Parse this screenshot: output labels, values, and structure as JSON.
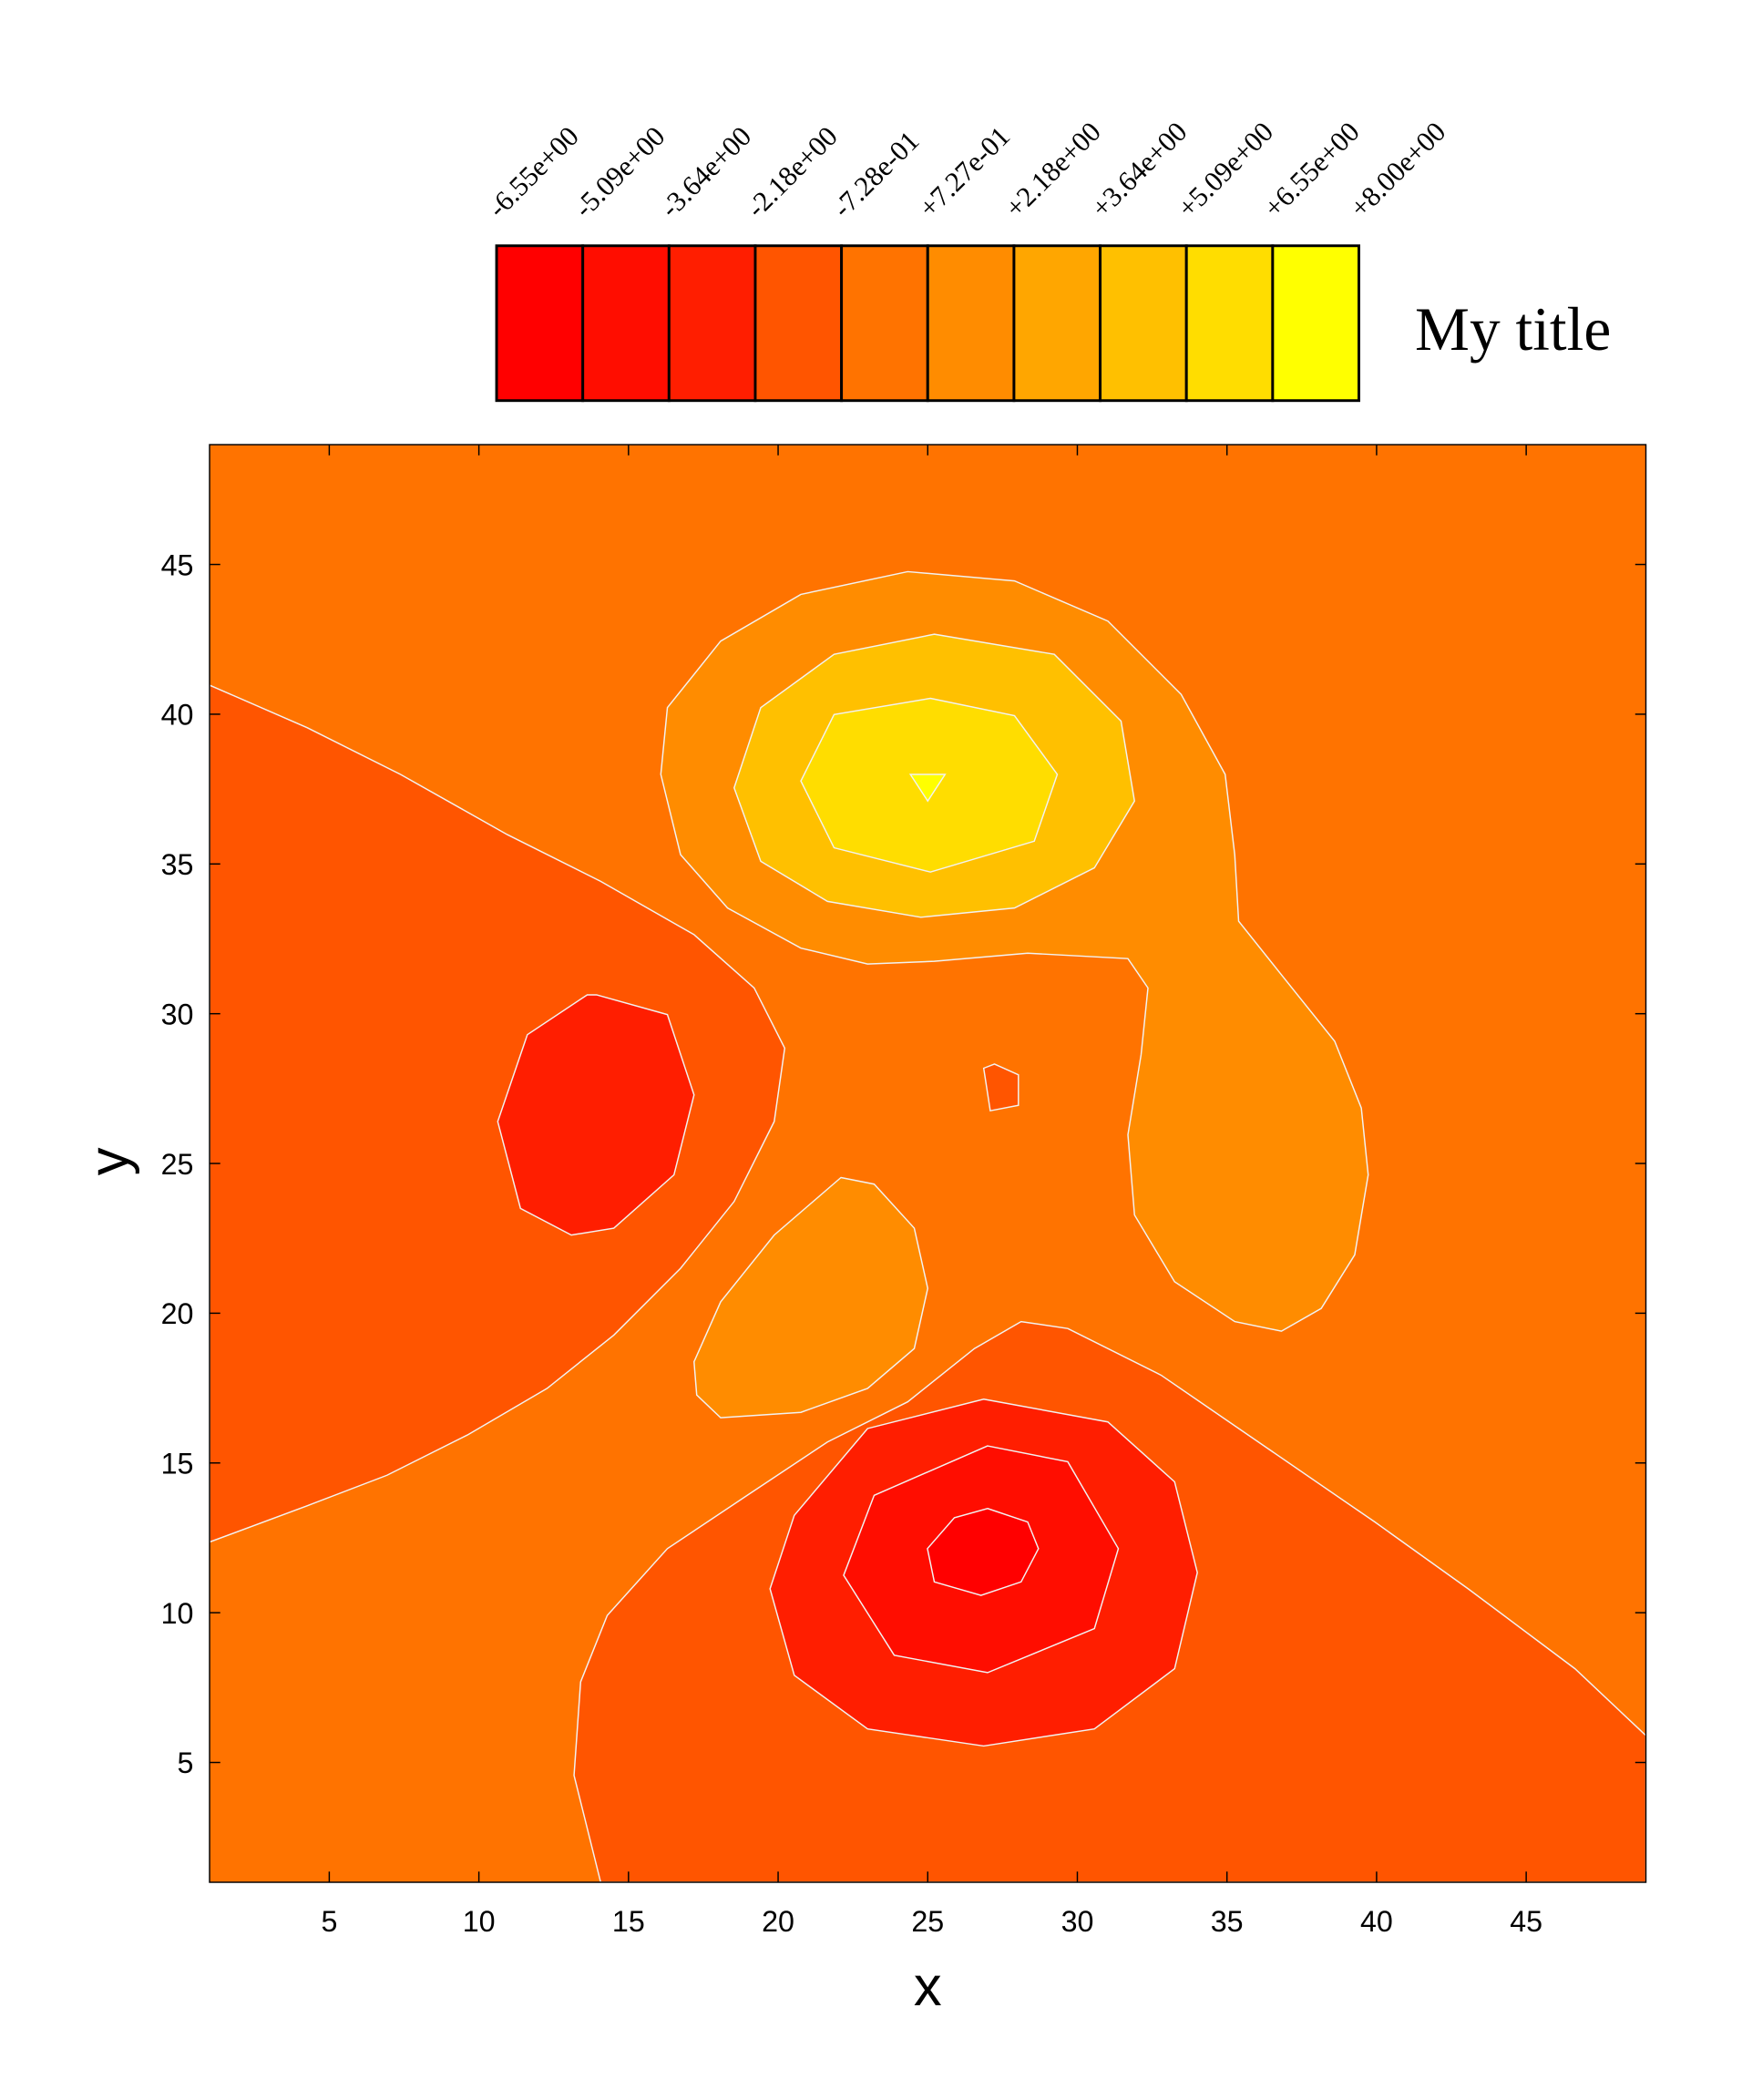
{
  "chart_data": {
    "type": "contour",
    "colorbar_title": "My title",
    "xlabel": "x",
    "ylabel": "y",
    "xlim": [
      1,
      49
    ],
    "ylim": [
      1,
      49
    ],
    "xticks": [
      5,
      10,
      15,
      20,
      25,
      30,
      35,
      40,
      45
    ],
    "yticks": [
      5,
      10,
      15,
      20,
      25,
      30,
      35,
      40,
      45
    ],
    "levels": [
      {
        "value": -6.55,
        "label": "-6.55e+00"
      },
      {
        "value": -5.09,
        "label": "-5.09e+00"
      },
      {
        "value": -3.64,
        "label": "-3.64e+00"
      },
      {
        "value": -2.18,
        "label": "-2.18e+00"
      },
      {
        "value": -0.728,
        "label": "-7.28e-01"
      },
      {
        "value": 0.727,
        "label": "+7.27e-01"
      },
      {
        "value": 2.18,
        "label": "+2.18e+00"
      },
      {
        "value": 3.64,
        "label": "+3.64e+00"
      },
      {
        "value": 5.09,
        "label": "+5.09e+00"
      },
      {
        "value": 6.55,
        "label": "+6.55e+00"
      },
      {
        "value": 8.0,
        "label": "+8.00e+00"
      }
    ],
    "colors": [
      "#ff0000",
      "#ff0d00",
      "#ff1e00",
      "#ff5500",
      "#ff7300",
      "#ff8c00",
      "#ffa600",
      "#ffc000",
      "#ffdd00",
      "#ffff00"
    ],
    "regions": [
      {
        "level": -0.728,
        "x": [
          1,
          49,
          49,
          1
        ],
        "y": [
          1,
          1,
          49,
          49
        ]
      },
      {
        "level": -2.18,
        "x": [
          1,
          4.26,
          7.38,
          10.95,
          14.07,
          17.19,
          19.2,
          20.22,
          19.87,
          18.53,
          16.74,
          14.51,
          12.28,
          9.61,
          6.93,
          4.26,
          1
        ],
        "y": [
          40.97,
          39.55,
          37.99,
          35.98,
          34.42,
          32.64,
          30.86,
          28.85,
          26.4,
          23.73,
          21.5,
          19.27,
          17.49,
          15.93,
          14.59,
          13.57,
          12.36
        ]
      },
      {
        "level": -3.64,
        "x": [
          13.93,
          16.3,
          17.19,
          16.52,
          14.51,
          13.09,
          11.39,
          10.63,
          11.62,
          13.62
        ],
        "y": [
          30.63,
          29.97,
          27.29,
          24.62,
          22.84,
          22.61,
          23.5,
          26.4,
          29.3,
          30.63
        ]
      },
      {
        "level": -2.18,
        "x": [
          14.07,
          13.18,
          13.4,
          14.29,
          16.3,
          18.97,
          21.65,
          24.33,
          26.56,
          28.12,
          29.68,
          32.8,
          36.37,
          39.94,
          43.06,
          46.63,
          49,
          49
        ],
        "y": [
          1,
          4.57,
          7.69,
          9.91,
          12.14,
          13.92,
          15.7,
          17.04,
          18.82,
          19.72,
          19.49,
          17.93,
          15.48,
          13.03,
          10.8,
          8.13,
          5.9,
          1
        ]
      },
      {
        "level": -3.64,
        "x": [
          26.87,
          31.02,
          33.25,
          34.01,
          33.25,
          30.57,
          26.87,
          22.99,
          20.54,
          19.73,
          20.54,
          22.99
        ],
        "y": [
          17.13,
          16.37,
          14.37,
          11.34,
          8.13,
          6.12,
          5.55,
          6.12,
          7.91,
          10.8,
          13.25,
          16.15
        ]
      },
      {
        "level": -5.09,
        "x": [
          27,
          29.68,
          31.37,
          30.57,
          27,
          23.88,
          22.19,
          23.21
        ],
        "y": [
          15.57,
          15.04,
          12.14,
          9.47,
          8.0,
          8.58,
          11.25,
          13.92
        ]
      },
      {
        "level": -6.55,
        "x": [
          27,
          28.34,
          28.7,
          28.12,
          26.78,
          25.22,
          24.99,
          25.89
        ],
        "y": [
          13.48,
          13.03,
          12.14,
          11.03,
          10.58,
          11.03,
          12.14,
          13.17
        ]
      },
      {
        "level": 0.727,
        "x": [
          16.08,
          16.3,
          18.08,
          20.76,
          24.33,
          27.9,
          31.02,
          33.47,
          34.94,
          35.26,
          35.39,
          36.82,
          38.6,
          39.49,
          39.72,
          39.27,
          38.15,
          36.82,
          35.26,
          33.25,
          31.91,
          31.69,
          32.13,
          32.36,
          31.69,
          28.34,
          25.22,
          22.99,
          20.76,
          18.31,
          16.74
        ],
        "y": [
          37.99,
          40.22,
          42.44,
          44.0,
          44.76,
          44.45,
          43.11,
          40.66,
          37.99,
          35.31,
          33.09,
          31.3,
          29.08,
          26.85,
          24.62,
          21.95,
          20.16,
          19.4,
          19.72,
          21.05,
          23.28,
          25.96,
          28.63,
          30.86,
          31.84,
          32.02,
          31.75,
          31.66,
          32.19,
          33.53,
          35.31
        ]
      },
      {
        "level": 3.64,
        "x": [
          25.22,
          29.23,
          31.46,
          31.91,
          30.57,
          27.9,
          24.77,
          21.65,
          19.42,
          18.53,
          19.42,
          21.87
        ],
        "y": [
          42.67,
          42.0,
          39.77,
          37.1,
          34.87,
          33.53,
          33.22,
          33.75,
          35.09,
          37.54,
          40.22,
          42.0
        ]
      },
      {
        "level": 5.09,
        "x": [
          25.09,
          27.9,
          29.33,
          28.56,
          25.09,
          21.87,
          20.76,
          21.87
        ],
        "y": [
          40.53,
          39.95,
          37.99,
          35.76,
          34.73,
          35.54,
          37.77,
          39.99
        ]
      },
      {
        "level": 6.55,
        "x": [
          24.42,
          25.58,
          25.0
        ],
        "y": [
          37.99,
          37.99,
          37.1
        ]
      },
      {
        "level": 0.727,
        "x": [
          22.1,
          23.21,
          24.55,
          25.0,
          24.55,
          22.99,
          20.76,
          18.08,
          17.28,
          17.19,
          18.08,
          19.87
        ],
        "y": [
          24.53,
          24.31,
          22.84,
          20.83,
          18.82,
          17.49,
          16.69,
          16.51,
          17.27,
          18.38,
          20.38,
          22.61
        ]
      },
      {
        "level": -2.18,
        "x": [
          26.87,
          27.23,
          28.03,
          28.03,
          27.09
        ],
        "y": [
          28.18,
          28.32,
          27.96,
          26.94,
          26.76
        ]
      }
    ]
  }
}
